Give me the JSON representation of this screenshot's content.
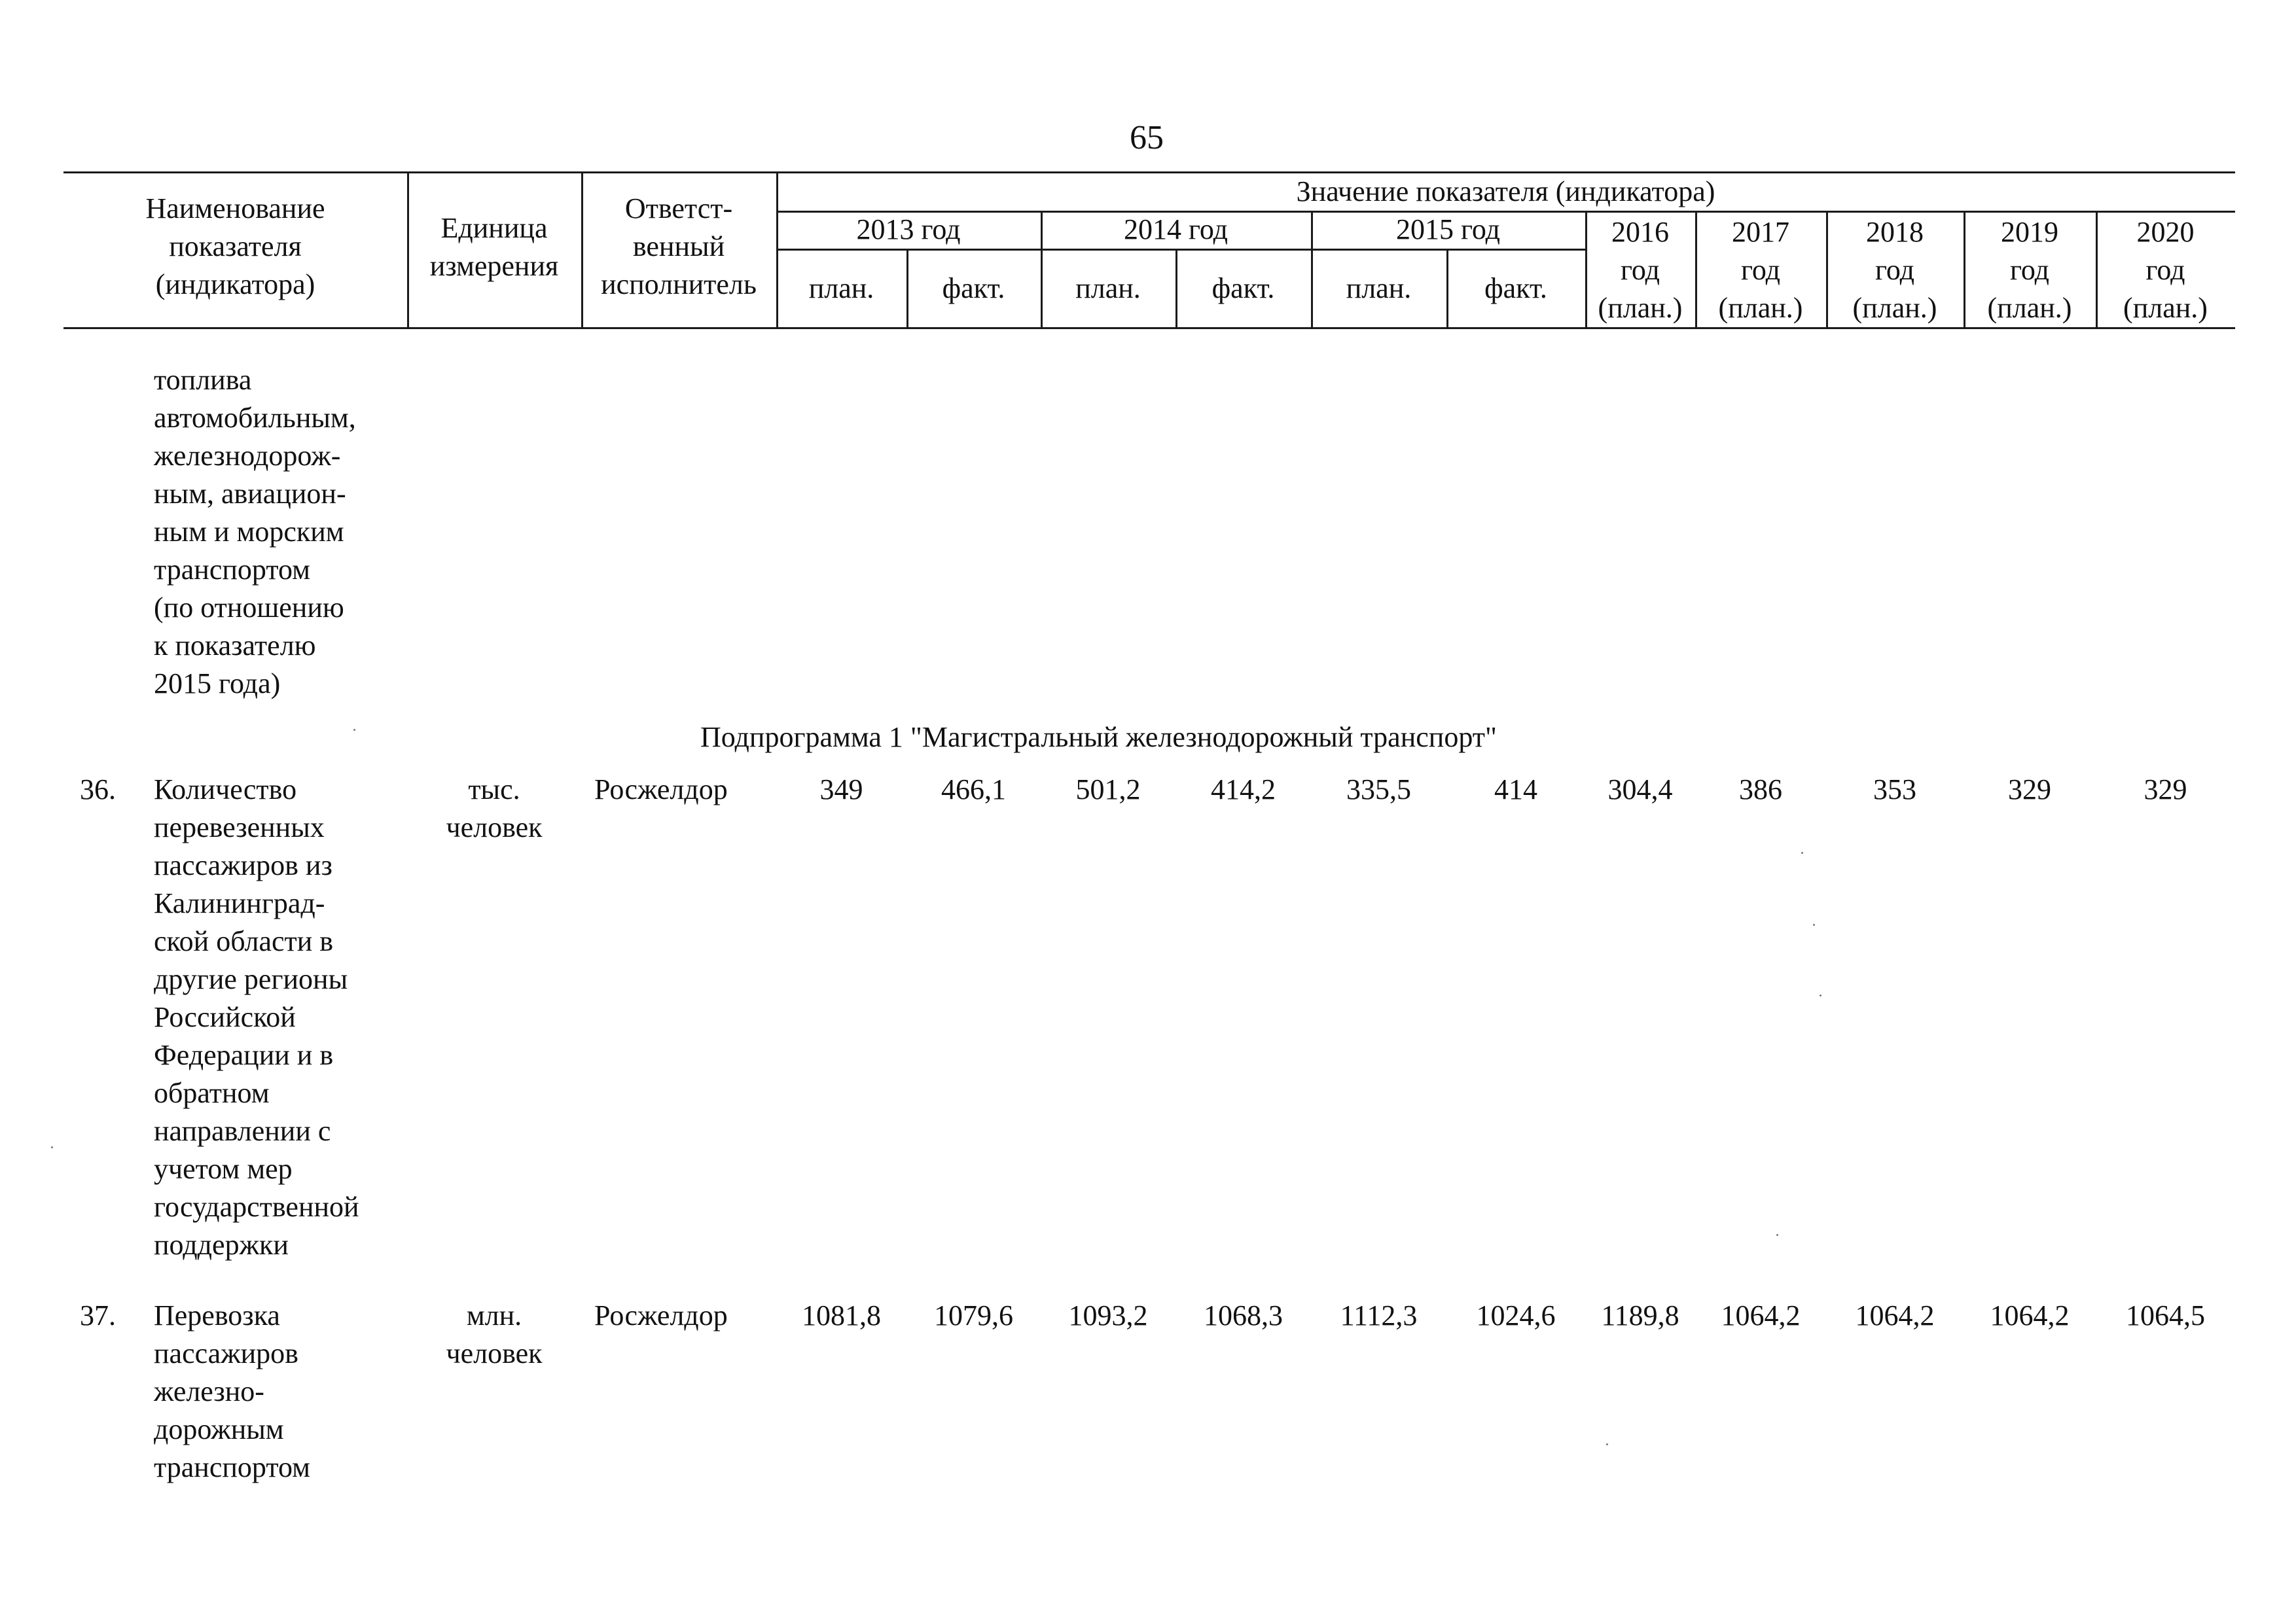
{
  "page": {
    "number": "65"
  },
  "header": {
    "name_col": "Наименование\nпоказателя\n(индикатора)",
    "unit_col": "Единица\nизмерения",
    "exec_col": "Ответст-\nвенный\nисполнитель",
    "value_group": "Значение показателя (индикатора)",
    "years": [
      "2013 год",
      "2014 год",
      "2015 год"
    ],
    "plan": "план.",
    "fact": "факт.",
    "plan_years": [
      "2016\nгод\n(план.)",
      "2017\nгод\n(план.)",
      "2018\nгод\n(план.)",
      "2019\nгод\n(план.)",
      "2020\nгод\n(план.)"
    ]
  },
  "continuation_text": "топлива\nавтомобильным,\nжелезнодорож-\nным, авиацион-\nным и морским\nтранспортом\n(по отношению\nк показателю\n2015 года)",
  "subprogram_title": "Подпрограмма 1 \"Магистральный железнодорожный транспорт\"",
  "rows": [
    {
      "num": "36.",
      "name": "Количество\nперевезенных\nпассажиров из\nКалининград-\nской области в\nдругие регионы\nРоссийской\nФедерации и в\nобратном\nнаправлении с\nучетом мер\nгосударственной\nподдержки",
      "unit": "тыс.\nчеловек",
      "exec": "Росжелдор",
      "values": [
        "349",
        "466,1",
        "501,2",
        "414,2",
        "335,5",
        "414",
        "304,4",
        "386",
        "353",
        "329",
        "329"
      ]
    },
    {
      "num": "37.",
      "name": "Перевозка\nпассажиров\nжелезно-\nдорожным\nтранспортом",
      "unit": "млн.\nчеловек",
      "exec": "Росжелдор",
      "values": [
        "1081,8",
        "1079,6",
        "1093,2",
        "1068,3",
        "1112,3",
        "1024,6",
        "1189,8",
        "1064,2",
        "1064,2",
        "1064,2",
        "1064,5"
      ]
    }
  ]
}
